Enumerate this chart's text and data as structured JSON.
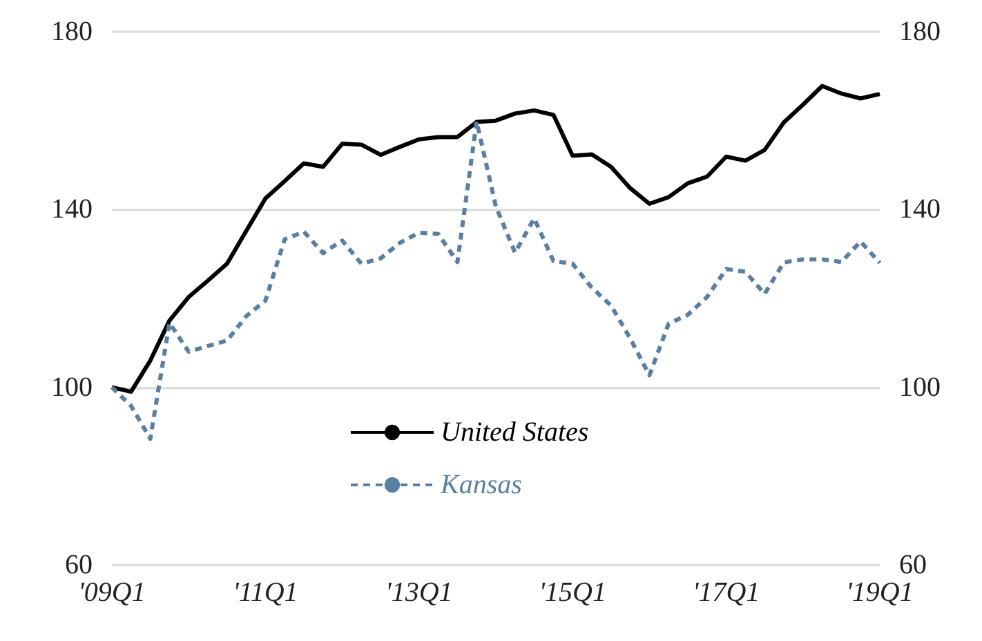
{
  "chart_data": {
    "type": "line",
    "categories": [
      "'09Q1",
      null,
      null,
      null,
      null,
      null,
      null,
      null,
      "'11Q1",
      null,
      null,
      null,
      null,
      null,
      null,
      null,
      "'13Q1",
      null,
      null,
      null,
      null,
      null,
      null,
      null,
      "'15Q1",
      null,
      null,
      null,
      null,
      null,
      null,
      null,
      "'17Q1",
      null,
      null,
      null,
      null,
      null,
      null,
      null,
      "'19Q1"
    ],
    "series": [
      {
        "name": "United States",
        "color": "#000000",
        "line_style": "solid",
        "values": [
          100,
          99,
          106,
          115,
          120.3,
          124,
          127.8,
          135.2,
          142.5,
          146.4,
          150.4,
          149.6,
          154.8,
          154.6,
          152.3,
          154.1,
          155.8,
          156.3,
          156.3,
          159.7,
          160,
          161.6,
          162.3,
          161.3,
          152.1,
          152.4,
          149.6,
          144.8,
          141.3,
          142.8,
          145.9,
          147.4,
          151.9,
          151,
          153.4,
          159.6,
          163.6,
          167.8,
          166.1,
          165,
          166
        ]
      },
      {
        "name": "Kansas",
        "color": "#5b7fa0",
        "line_style": "dashed",
        "values": [
          100,
          95.8,
          88.4,
          114.5,
          108,
          109.3,
          110.5,
          116,
          119.5,
          133.3,
          135,
          130.2,
          133,
          127.8,
          129,
          132.5,
          134.8,
          134.5,
          128.2,
          159.8,
          140.7,
          130.3,
          138,
          128.4,
          127.8,
          122.4,
          118.4,
          111,
          102.7,
          114.3,
          116.3,
          120.3,
          126.6,
          126,
          121,
          128.1,
          128.8,
          128.8,
          128.2,
          132.8,
          128
        ]
      }
    ],
    "ylim": [
      60,
      180
    ],
    "yticks": [
      60,
      100,
      140,
      180
    ],
    "y2lim": [
      60,
      180
    ],
    "y2ticks": [
      60,
      100,
      140,
      180
    ],
    "grid": "y",
    "legend": "bottom",
    "marker": "none"
  }
}
